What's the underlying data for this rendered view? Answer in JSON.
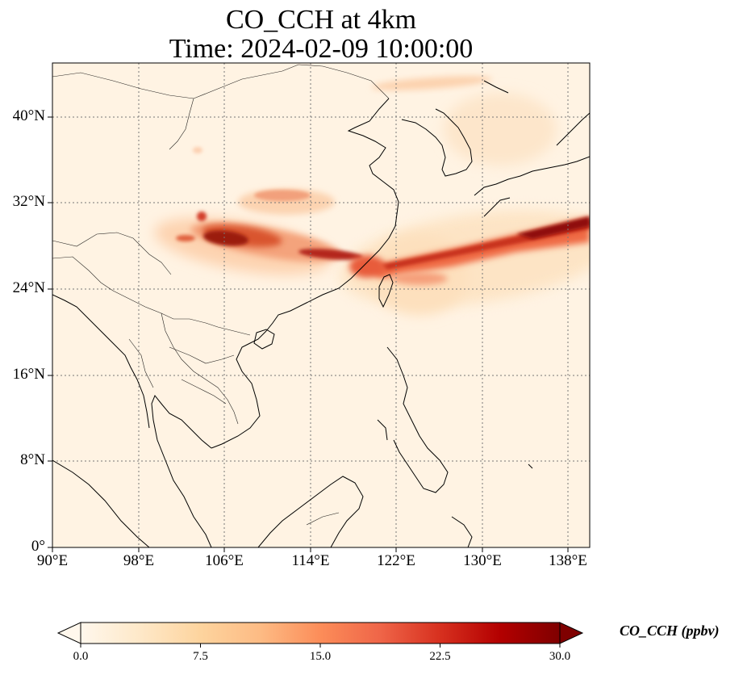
{
  "title_line1": "CO_CCH at 4km",
  "title_line2": "Time: 2024-02-09 10:00:00",
  "colorbar": {
    "label": "CO_CCH (ppbv)",
    "ticks": [
      "0.0",
      "7.5",
      "15.0",
      "22.5",
      "30.0"
    ],
    "min": 0,
    "max": 30,
    "extend": "both",
    "colormap": [
      "#fff7ec",
      "#fee8c8",
      "#fdd49e",
      "#fdbb84",
      "#fc8d59",
      "#ef6548",
      "#d7301f",
      "#b30000",
      "#7f0000"
    ]
  },
  "map": {
    "projection": "PlateCarree",
    "lon_range": [
      90,
      140
    ],
    "lat_range": [
      0,
      45
    ],
    "lon_ticks": [
      "90°E",
      "98°E",
      "106°E",
      "114°E",
      "122°E",
      "130°E",
      "138°E"
    ],
    "lat_ticks": [
      "0°",
      "8°N",
      "16°N",
      "24°N",
      "32°N",
      "40°N"
    ],
    "gridlines": true,
    "gridline_style": "dotted",
    "features": [
      "coastlines",
      "country-borders"
    ]
  },
  "plumes": [
    {
      "name": "southwest-china-plume",
      "lon": [
        101.5,
        118
      ],
      "lat": [
        26.5,
        30
      ],
      "peak_value": 28
    },
    {
      "name": "east-china-sea-pacific-band",
      "lon": [
        117,
        140
      ],
      "lat": [
        25.5,
        31
      ],
      "peak_value": 30
    },
    {
      "name": "northern-plume",
      "lon": [
        108,
        116
      ],
      "lat": [
        31,
        33.5
      ],
      "peak_value": 12
    },
    {
      "name": "korea-japan-sea-plume",
      "lon": [
        127,
        136
      ],
      "lat": [
        36,
        41
      ],
      "peak_value": 8
    },
    {
      "name": "mongolia-streak",
      "lon": [
        119,
        130
      ],
      "lat": [
        42,
        44.5
      ],
      "peak_value": 10
    }
  ]
}
